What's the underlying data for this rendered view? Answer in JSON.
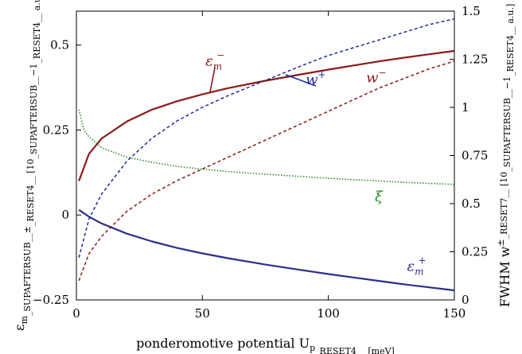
{
  "chart_data": {
    "type": "line",
    "xlabel": "ponderomotive potential U_p [meV]",
    "ylabel_left": "ε_m^± [10^−1 a.u.]; ξ",
    "ylabel_right": "FWHM w^± [10^−1 a.u.]",
    "xlim": [
      0,
      150
    ],
    "ylim_left": [
      -0.25,
      0.6
    ],
    "ylim_right": [
      0,
      1.5
    ],
    "xticks": [
      0,
      50,
      100,
      150
    ],
    "xtick_labels": [
      "0",
      "50",
      "100",
      "150"
    ],
    "yticks_left": [
      -0.25,
      0,
      0.25,
      0.5
    ],
    "ytick_labels_left": [
      "−0.25",
      "0",
      "0.25",
      "0.5"
    ],
    "yticks_right": [
      0,
      0.25,
      0.5,
      0.75,
      1,
      1.25,
      1.5
    ],
    "ytick_labels_right": [
      "0",
      "0.25",
      "0.5",
      "0.75",
      "1",
      "1.25",
      "1.5"
    ],
    "grid": false,
    "legend": "none",
    "series": [
      {
        "name": "ε_m^−",
        "axis": "left",
        "style": "solid",
        "color": "#8b1a1a",
        "x": [
          1,
          5,
          10,
          20,
          30,
          40,
          50,
          60,
          75,
          90,
          100,
          110,
          120,
          130,
          140,
          150
        ],
        "y": [
          0.1,
          0.18,
          0.225,
          0.275,
          0.31,
          0.335,
          0.355,
          0.373,
          0.395,
          0.415,
          0.428,
          0.44,
          0.452,
          0.463,
          0.473,
          0.483
        ]
      },
      {
        "name": "ε_m^+",
        "axis": "left",
        "style": "solid",
        "color": "#2e2e8a",
        "x": [
          1,
          5,
          10,
          20,
          30,
          40,
          50,
          60,
          75,
          90,
          100,
          110,
          120,
          130,
          140,
          150
        ],
        "y": [
          0.015,
          -0.005,
          -0.025,
          -0.055,
          -0.078,
          -0.097,
          -0.113,
          -0.127,
          -0.146,
          -0.163,
          -0.174,
          -0.184,
          -0.194,
          -0.204,
          -0.213,
          -0.222
        ]
      },
      {
        "name": "ξ",
        "axis": "left",
        "style": "dotted",
        "color": "#2a8a2a",
        "x": [
          1,
          3,
          5,
          10,
          20,
          30,
          40,
          50,
          60,
          75,
          90,
          100,
          110,
          120,
          130,
          140,
          150
        ],
        "y": [
          0.31,
          0.25,
          0.23,
          0.198,
          0.17,
          0.155,
          0.143,
          0.135,
          0.128,
          0.12,
          0.113,
          0.108,
          0.104,
          0.1,
          0.096,
          0.093,
          0.09
        ]
      },
      {
        "name": "w^+",
        "axis": "right",
        "style": "dashed",
        "color": "#1f2a9a",
        "x": [
          1,
          5,
          10,
          20,
          30,
          40,
          50,
          60,
          75,
          90,
          100,
          110,
          120,
          130,
          140,
          150
        ],
        "y": [
          0.22,
          0.42,
          0.55,
          0.72,
          0.84,
          0.93,
          1.0,
          1.06,
          1.14,
          1.22,
          1.27,
          1.31,
          1.35,
          1.39,
          1.43,
          1.46
        ]
      },
      {
        "name": "w^−",
        "axis": "right",
        "style": "dashed",
        "color": "#8b1a1a",
        "x": [
          1,
          5,
          10,
          20,
          30,
          40,
          50,
          60,
          75,
          90,
          100,
          110,
          120,
          130,
          140,
          150
        ],
        "y": [
          0.1,
          0.24,
          0.33,
          0.46,
          0.55,
          0.62,
          0.68,
          0.74,
          0.83,
          0.92,
          0.98,
          1.04,
          1.1,
          1.15,
          1.2,
          1.24
        ]
      }
    ],
    "annotations": [
      {
        "name": "label-eps-minus",
        "text": "ε_m^−",
        "x": 55,
        "y": 0.44,
        "axis": "left",
        "color": "#8b1a1a",
        "leader_to": {
          "x": 53,
          "y": 0.36
        }
      },
      {
        "name": "label-w-plus",
        "text": "w^+",
        "x": 95,
        "y": 1.12,
        "axis": "right",
        "color": "#1f2a9a",
        "leader_to": {
          "x": 83,
          "y": 1.17
        }
      },
      {
        "name": "label-w-minus",
        "text": "w^−",
        "x": 119,
        "y": 1.13,
        "axis": "right",
        "color": "#8b1a1a"
      },
      {
        "name": "label-xi",
        "text": "ξ",
        "x": 120,
        "y": 0.04,
        "axis": "left",
        "color": "#2a8a2a"
      },
      {
        "name": "label-eps-plus",
        "text": "ε_m^+",
        "x": 135,
        "y": -0.165,
        "axis": "left",
        "color": "#2e2e8a"
      }
    ]
  }
}
